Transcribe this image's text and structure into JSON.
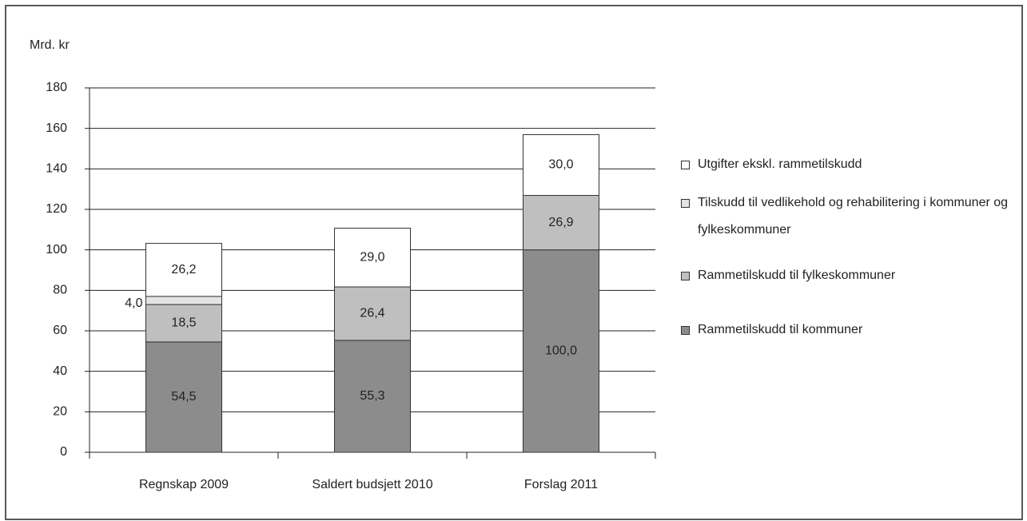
{
  "chart_data": {
    "type": "stacked_bar",
    "y_label": "Mrd. kr",
    "categories": [
      "Regnskap 2009",
      "Saldert budsjett 2010",
      "Forslag 2011"
    ],
    "series": [
      {
        "name": "Rammetilskudd til kommuner",
        "color": "#8c8c8c",
        "values": [
          54.5,
          55.3,
          100.0
        ],
        "value_labels": [
          "54,5",
          "55,3",
          "100,0"
        ]
      },
      {
        "name": "Rammetilskudd til fylkeskommuner",
        "color": "#bfbfbf",
        "values": [
          18.5,
          26.4,
          26.9
        ],
        "value_labels": [
          "18,5",
          "26,4",
          "26,9"
        ]
      },
      {
        "name": "Tilskudd til vedlikehold og rehabilitering i kommuner og fylkeskommuner",
        "color": "#e3e3e3",
        "values": [
          4.0,
          null,
          null
        ],
        "value_labels": [
          "4,0",
          null,
          null
        ]
      },
      {
        "name": "Utgifter ekskl. rammetilskudd",
        "color": "#ffffff",
        "values": [
          26.2,
          29.0,
          30.0
        ],
        "value_labels": [
          "26,2",
          "29,0",
          "30,0"
        ]
      }
    ],
    "ylim": [
      0,
      180
    ],
    "yticks": [
      0,
      20,
      40,
      60,
      80,
      100,
      120,
      140,
      160,
      180
    ],
    "grid": true
  }
}
